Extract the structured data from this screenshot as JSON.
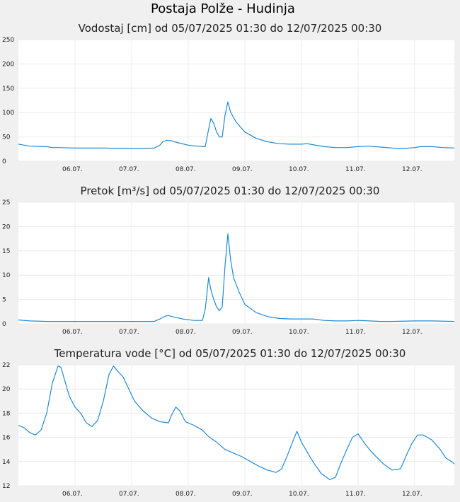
{
  "title": "Postaja Polže - Hudinja",
  "colors": {
    "line": "#1f8ad8",
    "plot_bg": "#ffffff",
    "grid": "#ececec",
    "page_bg": "#f0f0f0"
  },
  "chart_data": [
    {
      "type": "line",
      "title": "Vodostaj [cm] od 05/07/2025 01:30 do 12/07/2025 00:30",
      "xlabel": "",
      "ylabel": "",
      "x_range": [
        0,
        7.7
      ],
      "xticks": [
        {
          "x": 1,
          "label": "06.07."
        },
        {
          "x": 2,
          "label": "07.07."
        },
        {
          "x": 3,
          "label": "08.07."
        },
        {
          "x": 4,
          "label": "09.07."
        },
        {
          "x": 5,
          "label": "10.07."
        },
        {
          "x": 6,
          "label": "11.07."
        },
        {
          "x": 7,
          "label": "12.07."
        }
      ],
      "yticks": [
        0,
        50,
        100,
        150,
        200,
        250
      ],
      "ylim": [
        0,
        250
      ],
      "grid": true,
      "series": [
        {
          "values": [
            [
              0.0,
              35
            ],
            [
              0.1,
              33
            ],
            [
              0.2,
              31
            ],
            [
              0.5,
              30
            ],
            [
              0.6,
              28
            ],
            [
              0.7,
              28
            ],
            [
              1.0,
              27
            ],
            [
              1.5,
              27
            ],
            [
              2.0,
              26
            ],
            [
              2.2,
              26
            ],
            [
              2.4,
              27
            ],
            [
              2.5,
              33
            ],
            [
              2.55,
              40
            ],
            [
              2.62,
              43
            ],
            [
              2.7,
              42
            ],
            [
              2.85,
              37
            ],
            [
              3.0,
              33
            ],
            [
              3.15,
              31
            ],
            [
              3.3,
              30
            ],
            [
              3.35,
              60
            ],
            [
              3.4,
              88
            ],
            [
              3.45,
              78
            ],
            [
              3.5,
              60
            ],
            [
              3.55,
              50
            ],
            [
              3.6,
              50
            ],
            [
              3.65,
              95
            ],
            [
              3.7,
              122
            ],
            [
              3.75,
              100
            ],
            [
              3.85,
              80
            ],
            [
              4.0,
              60
            ],
            [
              4.2,
              47
            ],
            [
              4.4,
              40
            ],
            [
              4.6,
              36
            ],
            [
              4.8,
              35
            ],
            [
              5.0,
              35
            ],
            [
              5.1,
              36
            ],
            [
              5.2,
              34
            ],
            [
              5.4,
              30
            ],
            [
              5.6,
              28
            ],
            [
              5.8,
              28
            ],
            [
              6.0,
              30
            ],
            [
              6.2,
              31
            ],
            [
              6.4,
              29
            ],
            [
              6.6,
              27
            ],
            [
              6.8,
              26
            ],
            [
              7.0,
              28
            ],
            [
              7.1,
              30
            ],
            [
              7.3,
              30
            ],
            [
              7.5,
              28
            ],
            [
              7.7,
              27
            ]
          ]
        }
      ]
    },
    {
      "type": "line",
      "title": "Pretok [m³/s] od 05/07/2025 01:30 do 12/07/2025 00:30",
      "xlabel": "",
      "ylabel": "",
      "x_range": [
        0,
        7.7
      ],
      "xticks": [
        {
          "x": 1,
          "label": "06.07."
        },
        {
          "x": 2,
          "label": "07.07."
        },
        {
          "x": 3,
          "label": "08.07."
        },
        {
          "x": 4,
          "label": "09.07."
        },
        {
          "x": 5,
          "label": "10.07."
        },
        {
          "x": 6,
          "label": "11.07."
        },
        {
          "x": 7,
          "label": "12.07."
        }
      ],
      "yticks": [
        0,
        5,
        10,
        15,
        20,
        25
      ],
      "ylim": [
        0,
        25
      ],
      "grid": true,
      "series": [
        {
          "values": [
            [
              0.0,
              0.8
            ],
            [
              0.2,
              0.6
            ],
            [
              0.5,
              0.5
            ],
            [
              1.0,
              0.5
            ],
            [
              1.5,
              0.5
            ],
            [
              2.0,
              0.5
            ],
            [
              2.4,
              0.5
            ],
            [
              2.5,
              1.0
            ],
            [
              2.6,
              1.6
            ],
            [
              2.65,
              1.7
            ],
            [
              2.75,
              1.4
            ],
            [
              2.9,
              1.0
            ],
            [
              3.1,
              0.7
            ],
            [
              3.25,
              0.7
            ],
            [
              3.3,
              3.0
            ],
            [
              3.36,
              9.5
            ],
            [
              3.4,
              7.0
            ],
            [
              3.45,
              5.0
            ],
            [
              3.5,
              3.5
            ],
            [
              3.55,
              2.7
            ],
            [
              3.6,
              3.5
            ],
            [
              3.65,
              12.0
            ],
            [
              3.7,
              18.5
            ],
            [
              3.75,
              13.0
            ],
            [
              3.8,
              9.5
            ],
            [
              3.9,
              6.5
            ],
            [
              4.0,
              4.0
            ],
            [
              4.2,
              2.3
            ],
            [
              4.4,
              1.5
            ],
            [
              4.6,
              1.1
            ],
            [
              4.8,
              1.0
            ],
            [
              5.0,
              1.0
            ],
            [
              5.2,
              1.0
            ],
            [
              5.4,
              0.7
            ],
            [
              5.6,
              0.6
            ],
            [
              5.8,
              0.6
            ],
            [
              6.0,
              0.7
            ],
            [
              6.2,
              0.6
            ],
            [
              6.4,
              0.5
            ],
            [
              6.6,
              0.5
            ],
            [
              7.0,
              0.6
            ],
            [
              7.3,
              0.6
            ],
            [
              7.7,
              0.5
            ]
          ]
        }
      ]
    },
    {
      "type": "line",
      "title": "Temperatura vode [°C] od 05/07/2025 01:30 do 12/07/2025 00:30",
      "xlabel": "",
      "ylabel": "",
      "x_range": [
        0,
        7.7
      ],
      "xticks": [
        {
          "x": 1,
          "label": "06.07."
        },
        {
          "x": 2,
          "label": "07.07."
        },
        {
          "x": 3,
          "label": "08.07."
        },
        {
          "x": 4,
          "label": "09.07."
        },
        {
          "x": 5,
          "label": "10.07."
        },
        {
          "x": 6,
          "label": "11.07."
        },
        {
          "x": 7,
          "label": "12.07."
        }
      ],
      "yticks": [
        12,
        14,
        16,
        18,
        20,
        22
      ],
      "ylim": [
        12,
        22
      ],
      "grid": true,
      "series": [
        {
          "values": [
            [
              0.0,
              17.0
            ],
            [
              0.1,
              16.8
            ],
            [
              0.2,
              16.4
            ],
            [
              0.3,
              16.2
            ],
            [
              0.4,
              16.6
            ],
            [
              0.5,
              18.0
            ],
            [
              0.6,
              20.5
            ],
            [
              0.7,
              21.9
            ],
            [
              0.75,
              21.8
            ],
            [
              0.8,
              21.0
            ],
            [
              0.9,
              19.4
            ],
            [
              1.0,
              18.5
            ],
            [
              1.1,
              18.0
            ],
            [
              1.2,
              17.2
            ],
            [
              1.3,
              16.9
            ],
            [
              1.4,
              17.4
            ],
            [
              1.5,
              19.0
            ],
            [
              1.6,
              21.2
            ],
            [
              1.68,
              21.9
            ],
            [
              1.75,
              21.5
            ],
            [
              1.85,
              21.0
            ],
            [
              1.95,
              20.0
            ],
            [
              2.05,
              19.0
            ],
            [
              2.2,
              18.2
            ],
            [
              2.35,
              17.6
            ],
            [
              2.5,
              17.3
            ],
            [
              2.65,
              17.2
            ],
            [
              2.7,
              17.8
            ],
            [
              2.78,
              18.5
            ],
            [
              2.85,
              18.2
            ],
            [
              2.95,
              17.3
            ],
            [
              3.1,
              17.0
            ],
            [
              3.25,
              16.6
            ],
            [
              3.35,
              16.1
            ],
            [
              3.5,
              15.6
            ],
            [
              3.65,
              15.0
            ],
            [
              3.8,
              14.7
            ],
            [
              3.95,
              14.4
            ],
            [
              4.1,
              14.0
            ],
            [
              4.25,
              13.6
            ],
            [
              4.4,
              13.3
            ],
            [
              4.55,
              13.1
            ],
            [
              4.65,
              13.4
            ],
            [
              4.75,
              14.5
            ],
            [
              4.85,
              15.7
            ],
            [
              4.92,
              16.5
            ],
            [
              5.0,
              15.6
            ],
            [
              5.1,
              14.8
            ],
            [
              5.2,
              14.0
            ],
            [
              5.35,
              13.0
            ],
            [
              5.5,
              12.5
            ],
            [
              5.6,
              12.7
            ],
            [
              5.7,
              13.9
            ],
            [
              5.8,
              15.0
            ],
            [
              5.9,
              16.0
            ],
            [
              6.0,
              16.3
            ],
            [
              6.1,
              15.6
            ],
            [
              6.2,
              15.0
            ],
            [
              6.3,
              14.5
            ],
            [
              6.45,
              13.8
            ],
            [
              6.6,
              13.3
            ],
            [
              6.75,
              13.4
            ],
            [
              6.85,
              14.5
            ],
            [
              6.95,
              15.5
            ],
            [
              7.05,
              16.2
            ],
            [
              7.15,
              16.2
            ],
            [
              7.3,
              15.8
            ],
            [
              7.45,
              15.0
            ],
            [
              7.55,
              14.3
            ],
            [
              7.65,
              14.0
            ],
            [
              7.7,
              13.8
            ]
          ]
        }
      ]
    }
  ]
}
